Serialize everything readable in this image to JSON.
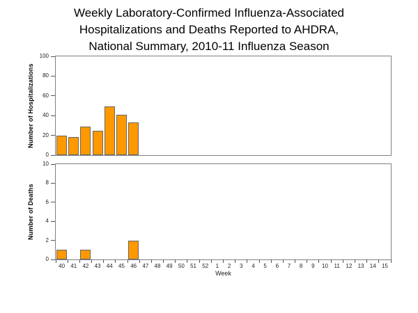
{
  "title": {
    "line1": "Weekly Laboratory-Confirmed Influenza-Associated",
    "line2": "Hospitalizations and Deaths Reported to AHDRA,",
    "line3": "National Summary, 2010-11 Influenza Season"
  },
  "x_axis": {
    "label": "Week",
    "categories": [
      "40",
      "41",
      "42",
      "43",
      "44",
      "45",
      "46",
      "47",
      "48",
      "49",
      "50",
      "51",
      "52",
      "1",
      "2",
      "3",
      "4",
      "5",
      "6",
      "7",
      "8",
      "9",
      "10",
      "11",
      "12",
      "13",
      "14",
      "15"
    ]
  },
  "colors": {
    "bar_fill": "#FF9900",
    "bar_border": "#666666",
    "plot_border": "#808080",
    "tick": "#555555",
    "text": "#000000"
  },
  "chart_data": [
    {
      "type": "bar",
      "title": "Weekly Laboratory-Confirmed Influenza-Associated Hospitalizations and Deaths Reported to AHDRA, National Summary, 2010-11 Influenza Season",
      "ylabel": "Number of Hospitalizations",
      "xlabel": "Week",
      "ylim": [
        0,
        100
      ],
      "yticks": [
        0,
        20,
        40,
        60,
        80,
        100
      ],
      "grid": false,
      "legend": "none",
      "categories": [
        "40",
        "41",
        "42",
        "43",
        "44",
        "45",
        "46",
        "47",
        "48",
        "49",
        "50",
        "51",
        "52",
        "1",
        "2",
        "3",
        "4",
        "5",
        "6",
        "7",
        "8",
        "9",
        "10",
        "11",
        "12",
        "13",
        "14",
        "15"
      ],
      "values": [
        20,
        18,
        29,
        25,
        49,
        41,
        33,
        null,
        null,
        null,
        null,
        null,
        null,
        null,
        null,
        null,
        null,
        null,
        null,
        null,
        null,
        null,
        null,
        null,
        null,
        null,
        null,
        null
      ]
    },
    {
      "type": "bar",
      "ylabel": "Number of Deaths",
      "xlabel": "Week",
      "ylim": [
        0,
        10
      ],
      "yticks": [
        0,
        2,
        4,
        6,
        8,
        10
      ],
      "grid": false,
      "legend": "none",
      "categories": [
        "40",
        "41",
        "42",
        "43",
        "44",
        "45",
        "46",
        "47",
        "48",
        "49",
        "50",
        "51",
        "52",
        "1",
        "2",
        "3",
        "4",
        "5",
        "6",
        "7",
        "8",
        "9",
        "10",
        "11",
        "12",
        "13",
        "14",
        "15"
      ],
      "values": [
        1,
        null,
        1,
        null,
        null,
        null,
        2,
        null,
        null,
        null,
        null,
        null,
        null,
        null,
        null,
        null,
        null,
        null,
        null,
        null,
        null,
        null,
        null,
        null,
        null,
        null,
        null,
        null
      ]
    }
  ]
}
